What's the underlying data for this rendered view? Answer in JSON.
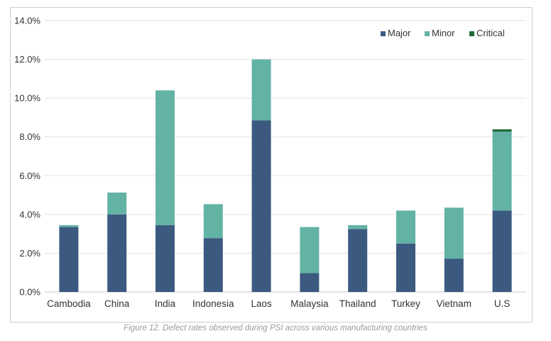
{
  "chart_data": {
    "type": "bar",
    "stacked": true,
    "categories": [
      "Cambodia",
      "China",
      "India",
      "Indonesia",
      "Laos",
      "Malaysia",
      "Thailand",
      "Turkey",
      "Vietnam",
      "U.S"
    ],
    "series": [
      {
        "name": "Major",
        "color": "#3c5a80",
        "values": [
          3.35,
          4.0,
          3.45,
          2.78,
          8.85,
          0.97,
          3.25,
          2.5,
          1.72,
          4.2
        ]
      },
      {
        "name": "Minor",
        "color": "#63b3a5",
        "values": [
          0.1,
          1.13,
          6.95,
          1.75,
          3.15,
          2.38,
          0.2,
          1.7,
          2.63,
          4.07
        ]
      },
      {
        "name": "Critical",
        "color": "#1e6b34",
        "values": [
          0,
          0,
          0,
          0,
          0,
          0,
          0,
          0,
          0,
          0.12
        ]
      }
    ],
    "ylim": [
      0,
      14
    ],
    "yticks": [
      "0.0%",
      "2.0%",
      "4.0%",
      "6.0%",
      "8.0%",
      "10.0%",
      "12.0%",
      "14.0%"
    ],
    "grid": true,
    "legend_position": "top-right",
    "caption": "Figure 12. Defect rates observed during PSI across various manufacturing countries"
  }
}
